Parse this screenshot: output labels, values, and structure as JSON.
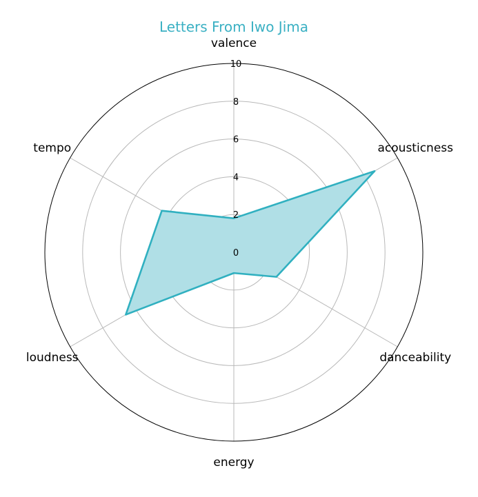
{
  "chart_data": {
    "type": "radar",
    "title": "Letters From Iwo Jima",
    "axes": [
      "valence",
      "acousticness",
      "danceability",
      "energy",
      "loudness",
      "tempo"
    ],
    "series": [
      {
        "values": [
          1.8,
          8.6,
          2.6,
          1.1,
          6.6,
          4.4
        ]
      }
    ],
    "rlim": [
      0,
      10
    ],
    "r_ticks": [
      0,
      2,
      4,
      6,
      8,
      10
    ],
    "grid": true,
    "colors": {
      "title": "#3ab0c3",
      "line": "#30b0c0",
      "fill": "#b0dfe6",
      "grid": "#b8b8b8",
      "frame": "#000000"
    }
  }
}
